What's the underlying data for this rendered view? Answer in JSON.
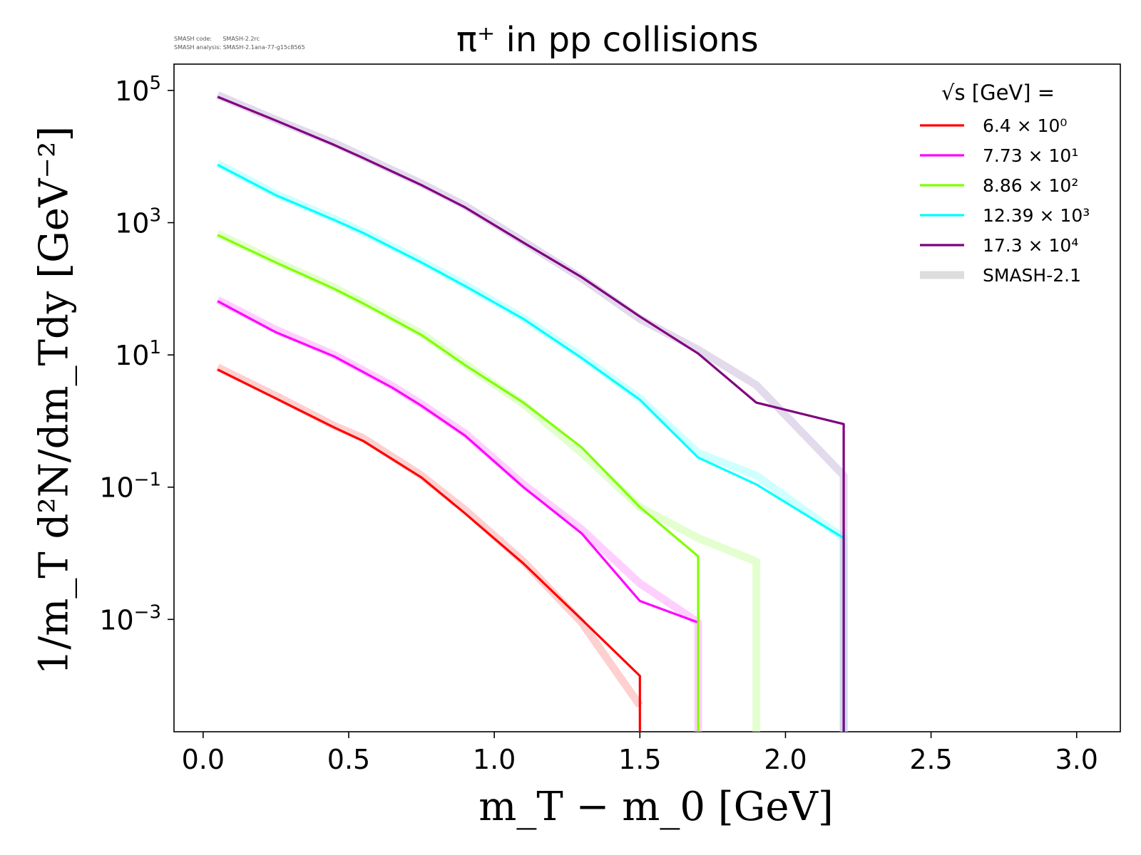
{
  "meta": {
    "code_line": "SMASH code:      SMASH-2.2rc",
    "analysis_line": "SMASH analysis: SMASH-2.1ana-77-g15c8565"
  },
  "chart_data": {
    "type": "line",
    "title": "π⁺ in pp collisions",
    "xlabel": "m_T − m_0 [GeV]",
    "ylabel": "1/m_T d²N/dm_Tdy [GeV⁻²]",
    "x_scale": "linear",
    "y_scale": "log",
    "xlim": [
      -0.1,
      3.15
    ],
    "ylim": [
      2e-05,
      250000.0
    ],
    "x_ticks": [
      0.0,
      0.5,
      1.0,
      1.5,
      2.0,
      2.5,
      3.0
    ],
    "x_tick_labels": [
      "0.0",
      "0.5",
      "1.0",
      "1.5",
      "2.0",
      "2.5",
      "3.0"
    ],
    "y_ticks": [
      100000.0,
      1000.0,
      10.0,
      0.1,
      0.001
    ],
    "y_tick_labels": [
      {
        "base": "10",
        "exp": "5"
      },
      {
        "base": "10",
        "exp": "3"
      },
      {
        "base": "10",
        "exp": "1"
      },
      {
        "base": "10",
        "exp": "−1"
      },
      {
        "base": "10",
        "exp": "−3"
      }
    ],
    "grid": false,
    "legend": {
      "placement": "top-right",
      "title": "√s [GeV] ="
    },
    "series": [
      {
        "name": "6.4 × 10⁰",
        "color": "#ff0000",
        "x": [
          0.05,
          0.25,
          0.45,
          0.55,
          0.75,
          0.9,
          1.1,
          1.3,
          1.5,
          1.5
        ],
        "y": [
          6,
          2.2,
          0.8,
          0.5,
          0.14,
          0.04,
          0.007,
          0.001,
          0.00014,
          1e-05
        ]
      },
      {
        "name": "7.73 × 10¹",
        "color": "#ff00ff",
        "x": [
          0.05,
          0.25,
          0.45,
          0.65,
          0.75,
          0.9,
          1.1,
          1.3,
          1.5,
          1.7
        ],
        "y": [
          65,
          22,
          9.5,
          3.2,
          1.7,
          0.6,
          0.1,
          0.02,
          0.0019,
          0.0009
        ]
      },
      {
        "name": "8.86 × 10²",
        "color": "#7fff00",
        "x": [
          0.05,
          0.25,
          0.45,
          0.55,
          0.75,
          0.9,
          1.1,
          1.3,
          1.5,
          1.7,
          1.7
        ],
        "y": [
          650,
          250,
          100,
          60,
          20,
          7,
          1.9,
          0.4,
          0.05,
          0.009,
          1e-05
        ]
      },
      {
        "name": "12.39 × 10³",
        "color": "#00ffff",
        "x": [
          0.05,
          0.25,
          0.45,
          0.55,
          0.75,
          0.9,
          1.1,
          1.3,
          1.5,
          1.7,
          1.9,
          2.2,
          2.2
        ],
        "y": [
          7500,
          2600,
          1100,
          700,
          250,
          110,
          35,
          9,
          2.1,
          0.28,
          0.11,
          0.017,
          1e-05
        ]
      },
      {
        "name": "17.3 × 10⁴",
        "color": "#800080",
        "x": [
          0.05,
          0.25,
          0.45,
          0.55,
          0.75,
          0.9,
          1.1,
          1.3,
          1.5,
          1.7,
          1.9,
          2.2,
          2.2
        ],
        "y": [
          80000,
          35000,
          15000,
          9500,
          3700,
          1700,
          500,
          150,
          38,
          10.5,
          1.9,
          0.9,
          1e-05
        ]
      }
    ],
    "reference": {
      "name": "SMASH-2.1",
      "curves": [
        {
          "color": "#ffaaaa",
          "x": [
            0.05,
            0.25,
            0.45,
            0.55,
            0.75,
            0.9,
            1.1,
            1.3,
            1.5
          ],
          "y": [
            6.5,
            2.4,
            0.85,
            0.55,
            0.15,
            0.045,
            0.0075,
            0.0009,
            5e-05
          ]
        },
        {
          "color": "#ffaaff",
          "x": [
            0.05,
            0.25,
            0.45,
            0.65,
            0.75,
            0.9,
            1.1,
            1.3,
            1.5,
            1.7,
            1.7
          ],
          "y": [
            68,
            24,
            10,
            3.4,
            1.8,
            0.65,
            0.11,
            0.023,
            0.0035,
            0.0009,
            1e-05
          ]
        },
        {
          "color": "#ccffaa",
          "x": [
            0.05,
            0.25,
            0.45,
            0.55,
            0.75,
            0.9,
            1.1,
            1.3,
            1.5,
            1.7,
            1.9,
            1.9
          ],
          "y": [
            680,
            260,
            105,
            62,
            21,
            7.2,
            1.8,
            0.33,
            0.05,
            0.017,
            0.0075,
            1e-05
          ]
        },
        {
          "color": "#aaffff",
          "x": [
            0.05,
            0.25,
            0.45,
            0.55,
            0.75,
            0.9,
            1.1,
            1.3,
            1.5,
            1.7,
            1.9,
            2.2,
            2.2
          ],
          "y": [
            7800,
            2700,
            1150,
            720,
            260,
            115,
            36,
            9.5,
            2.2,
            0.33,
            0.15,
            0.017,
            1e-05
          ]
        },
        {
          "color": "#ccbbdd",
          "x": [
            0.05,
            0.25,
            0.45,
            0.55,
            0.75,
            0.9,
            1.1,
            1.3,
            1.5,
            1.7,
            1.9,
            2.2,
            2.2
          ],
          "y": [
            85000,
            36000,
            16000,
            10000,
            3900,
            1800,
            520,
            145,
            35,
            12,
            3.5,
            0.15,
            1e-05
          ]
        }
      ],
      "legend_color": "#dddddd"
    }
  }
}
